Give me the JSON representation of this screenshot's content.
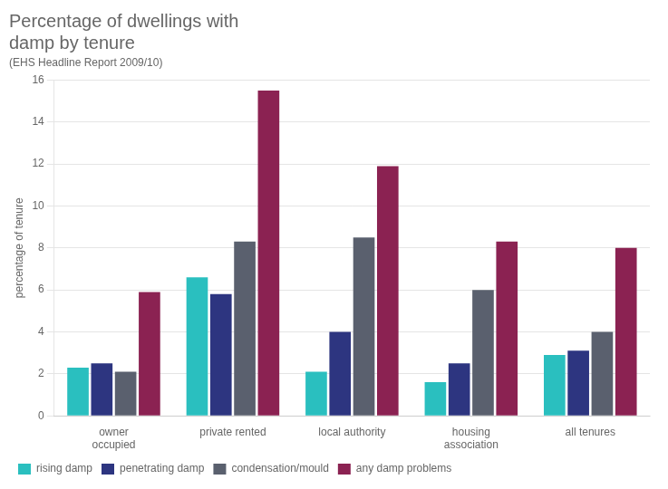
{
  "chart_data": {
    "type": "bar",
    "title": "Percentage of dwellings with\ndamp by tenure",
    "subtitle": "(EHS Headline Report 2009/10)",
    "y_label": "percentage of tenure",
    "categories": [
      "owner\noccupied",
      "private rented",
      "local authority",
      "housing\nassociation",
      "all tenures"
    ],
    "series": [
      {
        "name": "rising damp",
        "color": "#2abfbf",
        "values": [
          2.3,
          6.6,
          2.1,
          1.6,
          2.9
        ]
      },
      {
        "name": "penetrating damp",
        "color": "#2d3580",
        "values": [
          2.5,
          5.8,
          4.0,
          2.5,
          3.1
        ]
      },
      {
        "name": "condensation/mould",
        "color": "#5a606e",
        "values": [
          2.1,
          8.3,
          8.5,
          6.0,
          4.0
        ]
      },
      {
        "name": "any damp problems",
        "color": "#8b2252",
        "values": [
          5.9,
          15.5,
          11.9,
          8.3,
          8.0
        ]
      }
    ],
    "ylim": [
      0,
      16
    ],
    "yticks": [
      0,
      2,
      4,
      6,
      8,
      10,
      12,
      14,
      16
    ],
    "grid": true,
    "legend": "bottom"
  }
}
